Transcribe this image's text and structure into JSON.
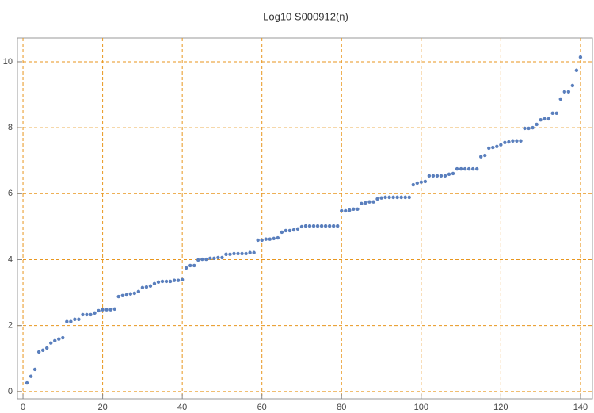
{
  "chart_data": {
    "type": "scatter",
    "title": "Log10 S000912(n)",
    "x": [
      1,
      2,
      3,
      4,
      5,
      6,
      7,
      8,
      9,
      10,
      11,
      12,
      13,
      14,
      15,
      16,
      17,
      18,
      19,
      20,
      21,
      22,
      23,
      24,
      25,
      26,
      27,
      28,
      29,
      30,
      31,
      32,
      33,
      34,
      35,
      36,
      37,
      38,
      39,
      40,
      41,
      42,
      43,
      44,
      45,
      46,
      47,
      48,
      49,
      50,
      51,
      52,
      53,
      54,
      55,
      56,
      57,
      58,
      59,
      60,
      61,
      62,
      63,
      64,
      65,
      66,
      67,
      68,
      69,
      70,
      71,
      72,
      73,
      74,
      75,
      76,
      77,
      78,
      79,
      80,
      81,
      82,
      83,
      84,
      85,
      86,
      87,
      88,
      89,
      90,
      91,
      92,
      93,
      94,
      95,
      96,
      97,
      98,
      99,
      100,
      101,
      102,
      103,
      104,
      105,
      106,
      107,
      108,
      109,
      110,
      111,
      112,
      113,
      114,
      115,
      116,
      117,
      118,
      119,
      120,
      121,
      122,
      123,
      124,
      125,
      126,
      127,
      128,
      129,
      130,
      131,
      132,
      133,
      134,
      135,
      136,
      137,
      138,
      139,
      140
    ],
    "values": [
      0.26,
      0.46,
      0.67,
      1.2,
      1.25,
      1.32,
      1.47,
      1.54,
      1.59,
      1.63,
      2.12,
      2.12,
      2.19,
      2.19,
      2.33,
      2.33,
      2.33,
      2.38,
      2.45,
      2.48,
      2.48,
      2.48,
      2.5,
      2.88,
      2.91,
      2.93,
      2.96,
      2.98,
      3.03,
      3.15,
      3.17,
      3.2,
      3.27,
      3.32,
      3.34,
      3.34,
      3.34,
      3.37,
      3.37,
      3.39,
      3.75,
      3.82,
      3.82,
      3.99,
      4.01,
      4.01,
      4.04,
      4.04,
      4.06,
      4.06,
      4.16,
      4.16,
      4.18,
      4.18,
      4.18,
      4.18,
      4.21,
      4.21,
      4.59,
      4.59,
      4.62,
      4.62,
      4.64,
      4.66,
      4.83,
      4.88,
      4.88,
      4.9,
      4.93,
      5.0,
      5.02,
      5.02,
      5.02,
      5.02,
      5.02,
      5.02,
      5.02,
      5.02,
      5.02,
      5.48,
      5.48,
      5.5,
      5.53,
      5.53,
      5.7,
      5.72,
      5.75,
      5.75,
      5.84,
      5.87,
      5.89,
      5.89,
      5.89,
      5.89,
      5.89,
      5.89,
      5.89,
      6.27,
      6.32,
      6.35,
      6.37,
      6.54,
      6.54,
      6.54,
      6.54,
      6.54,
      6.59,
      6.61,
      6.75,
      6.75,
      6.75,
      6.75,
      6.75,
      6.75,
      7.12,
      7.16,
      7.38,
      7.4,
      7.43,
      7.48,
      7.55,
      7.57,
      7.6,
      7.6,
      7.6,
      7.98,
      7.98,
      8.0,
      8.1,
      8.24,
      8.27,
      8.27,
      8.44,
      8.44,
      8.87,
      9.09,
      9.09,
      9.28,
      9.74,
      10.14
    ],
    "color": "#5a7fbd",
    "grid_color": "#e8961e",
    "xlim": [
      -1.4,
      143
    ],
    "ylim": [
      -0.22,
      10.72
    ],
    "xticks": [
      0,
      20,
      40,
      60,
      80,
      100,
      120,
      140
    ],
    "yticks": [
      0,
      2,
      4,
      6,
      8,
      10
    ],
    "grid": true
  }
}
